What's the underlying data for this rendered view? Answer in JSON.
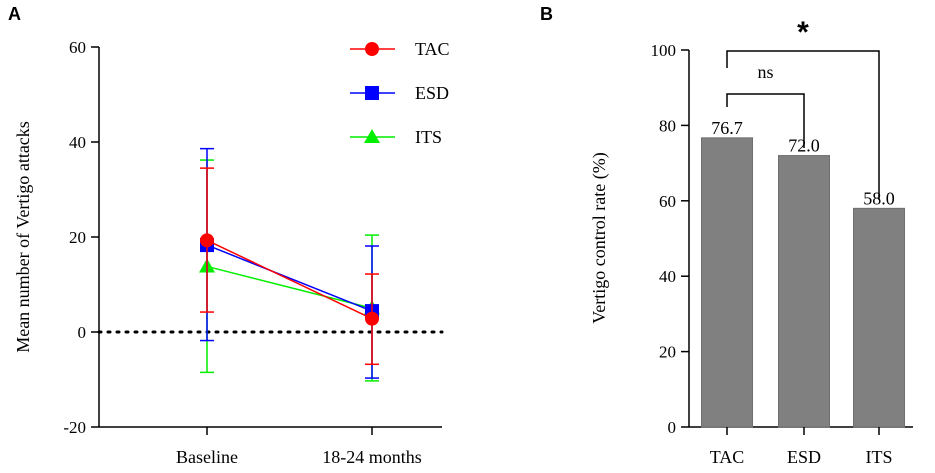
{
  "chart_data": [
    {
      "panel": "A",
      "type": "line",
      "categories": [
        "Baseline",
        "18-24 months"
      ],
      "ylabel": "Mean number of Vertigo attacks",
      "ylim": [
        -20,
        60
      ],
      "yticks": [
        "-20",
        "0",
        "20",
        "40",
        "60"
      ],
      "reference_line": 0,
      "series": [
        {
          "name": "TAC",
          "color": "#ff0000",
          "marker": "circle",
          "values": [
            19.3,
            2.8
          ],
          "err_low": [
            4.2,
            -6.8
          ],
          "err_high": [
            34.5,
            12.2
          ]
        },
        {
          "name": "ESD",
          "color": "#0000ff",
          "marker": "square",
          "values": [
            18.3,
            4.4
          ],
          "err_low": [
            -1.8,
            -9.7
          ],
          "err_high": [
            38.6,
            18.1
          ]
        },
        {
          "name": "ITS",
          "color": "#00ee00",
          "marker": "triangle",
          "values": [
            13.8,
            5.0
          ],
          "err_low": [
            -8.5,
            -10.3
          ],
          "err_high": [
            36.2,
            20.4
          ]
        }
      ]
    },
    {
      "panel": "B",
      "type": "bar",
      "categories": [
        "TAC",
        "ESD",
        "ITS"
      ],
      "values": [
        76.7,
        72.0,
        58.0
      ],
      "value_labels": [
        "76.7",
        "72.0",
        "58.0"
      ],
      "ylabel": "Vertigo control rate (%)",
      "ylim": [
        0,
        100
      ],
      "yticks": [
        "0",
        "20",
        "40",
        "60",
        "80",
        "100"
      ],
      "bar_color": "#808080",
      "significance": [
        {
          "from": "TAC",
          "to": "ESD",
          "label": "ns"
        },
        {
          "from": "TAC",
          "to": "ITS",
          "label": "*"
        }
      ]
    }
  ]
}
